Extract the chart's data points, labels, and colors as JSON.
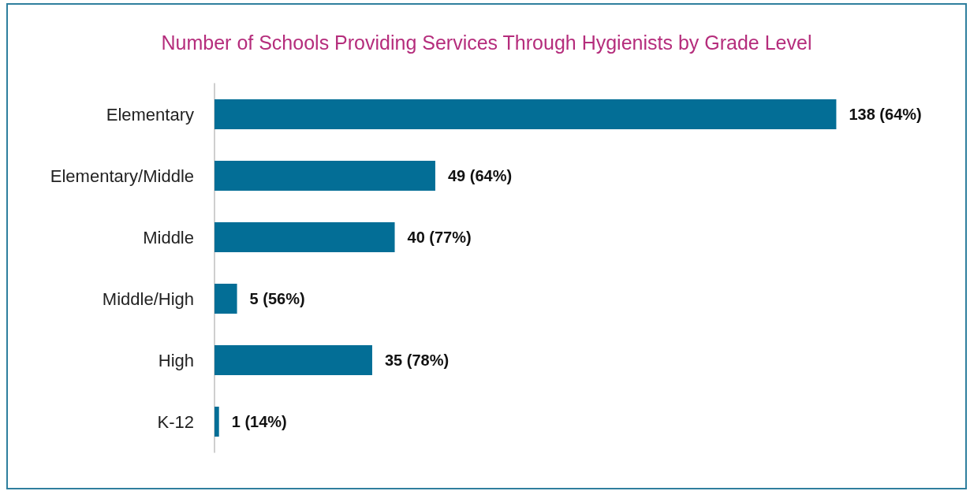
{
  "chart_data": {
    "type": "bar",
    "title": "Number of Schools Providing Services Through Hygienists by Grade Level",
    "orientation": "horizontal",
    "categories": [
      "Elementary",
      "Elementary/Middle",
      "Middle",
      "Middle/High",
      "High",
      "K-12"
    ],
    "values": [
      138,
      49,
      40,
      5,
      35,
      1
    ],
    "value_labels": [
      "138 (64%)",
      "49 (64%)",
      "40 (77%)",
      "5 (56%)",
      "35 (78%)",
      "1 (14%)"
    ],
    "color": "#036e96"
  }
}
